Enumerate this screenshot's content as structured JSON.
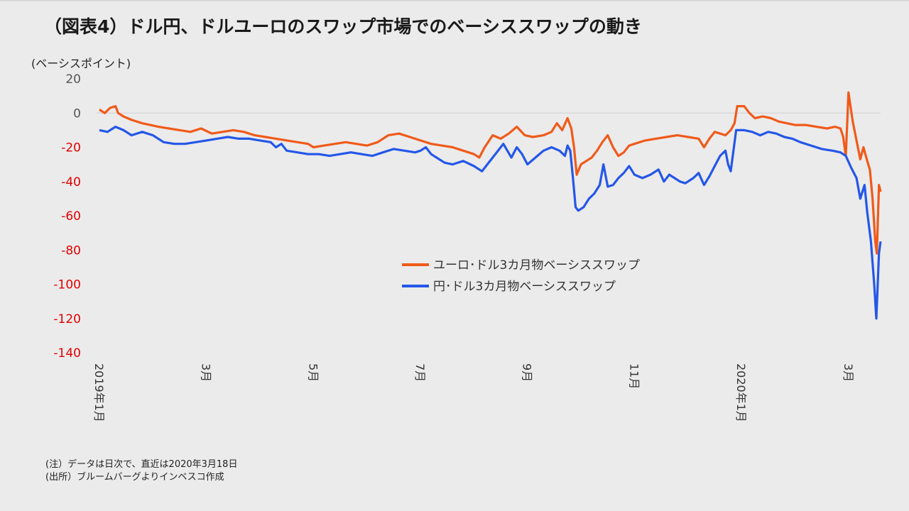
{
  "title": "（図表4）ドル円、ドルユーロのスワップ市場でのベーシススワップの動き",
  "notes": {
    "note": "(注）データは日次で、直近は2020年3月18日",
    "source": "(出所）ブルームバーグよりインベスコ作成"
  },
  "colors": {
    "euro": "#f05a1a",
    "yen": "#2457e8",
    "negative_tick": "#e00000",
    "positive_tick": "#555555"
  },
  "chart_data": {
    "type": "line",
    "ylabel": "(ベーシスポイント)",
    "ylim": [
      -140,
      20
    ],
    "yticks": [
      20,
      0,
      -20,
      -40,
      -60,
      -80,
      -100,
      -120,
      -140
    ],
    "xticks": [
      {
        "label": "2019年1月",
        "t": 0
      },
      {
        "label": "3月",
        "t": 2
      },
      {
        "label": "5月",
        "t": 4
      },
      {
        "label": "7月",
        "t": 6
      },
      {
        "label": "9月",
        "t": 8
      },
      {
        "label": "11月",
        "t": 10
      },
      {
        "label": "2020年1月",
        "t": 12
      },
      {
        "label": "3月",
        "t": 14
      }
    ],
    "x_range_months": [
      0,
      14.6
    ],
    "legend_position": "center-right",
    "series": [
      {
        "name": "ユーロ･ドル3カ月物ベーシススワップ",
        "points": [
          [
            0,
            2
          ],
          [
            0.1,
            0
          ],
          [
            0.2,
            3
          ],
          [
            0.3,
            4
          ],
          [
            0.35,
            0
          ],
          [
            0.45,
            -2
          ],
          [
            0.6,
            -4
          ],
          [
            0.8,
            -6
          ],
          [
            0.95,
            -7
          ],
          [
            1.1,
            -8
          ],
          [
            1.3,
            -9
          ],
          [
            1.5,
            -10
          ],
          [
            1.7,
            -11
          ],
          [
            1.9,
            -9
          ],
          [
            2.1,
            -12
          ],
          [
            2.3,
            -11
          ],
          [
            2.5,
            -10
          ],
          [
            2.7,
            -11
          ],
          [
            2.9,
            -13
          ],
          [
            3.1,
            -14
          ],
          [
            3.3,
            -15
          ],
          [
            3.5,
            -16
          ],
          [
            3.7,
            -17
          ],
          [
            3.9,
            -18
          ],
          [
            4.0,
            -20
          ],
          [
            4.2,
            -19
          ],
          [
            4.4,
            -18
          ],
          [
            4.6,
            -17
          ],
          [
            4.8,
            -18
          ],
          [
            5.0,
            -19
          ],
          [
            5.2,
            -17
          ],
          [
            5.4,
            -13
          ],
          [
            5.6,
            -12
          ],
          [
            5.8,
            -14
          ],
          [
            6.0,
            -16
          ],
          [
            6.2,
            -18
          ],
          [
            6.4,
            -19
          ],
          [
            6.6,
            -20
          ],
          [
            6.8,
            -22
          ],
          [
            7.0,
            -24
          ],
          [
            7.1,
            -26
          ],
          [
            7.2,
            -20
          ],
          [
            7.35,
            -13
          ],
          [
            7.5,
            -15
          ],
          [
            7.65,
            -12
          ],
          [
            7.8,
            -8
          ],
          [
            7.95,
            -13
          ],
          [
            8.1,
            -14
          ],
          [
            8.3,
            -13
          ],
          [
            8.45,
            -11
          ],
          [
            8.55,
            -6
          ],
          [
            8.65,
            -10
          ],
          [
            8.75,
            -3
          ],
          [
            8.82,
            -9
          ],
          [
            8.87,
            -20
          ],
          [
            8.92,
            -36
          ],
          [
            9.0,
            -30
          ],
          [
            9.1,
            -28
          ],
          [
            9.2,
            -26
          ],
          [
            9.3,
            -22
          ],
          [
            9.4,
            -17
          ],
          [
            9.5,
            -13
          ],
          [
            9.6,
            -20
          ],
          [
            9.7,
            -25
          ],
          [
            9.8,
            -23
          ],
          [
            9.9,
            -19
          ],
          [
            10.0,
            -18
          ],
          [
            10.2,
            -16
          ],
          [
            10.4,
            -15
          ],
          [
            10.6,
            -14
          ],
          [
            10.8,
            -13
          ],
          [
            11.0,
            -14
          ],
          [
            11.2,
            -15
          ],
          [
            11.3,
            -20
          ],
          [
            11.4,
            -15
          ],
          [
            11.5,
            -11
          ],
          [
            11.6,
            -12
          ],
          [
            11.7,
            -13
          ],
          [
            11.8,
            -10
          ],
          [
            11.87,
            -6
          ],
          [
            11.92,
            4
          ],
          [
            12.05,
            4
          ],
          [
            12.15,
            0
          ],
          [
            12.25,
            -3
          ],
          [
            12.4,
            -2
          ],
          [
            12.55,
            -3
          ],
          [
            12.7,
            -5
          ],
          [
            12.85,
            -6
          ],
          [
            13.0,
            -7
          ],
          [
            13.2,
            -7
          ],
          [
            13.4,
            -8
          ],
          [
            13.6,
            -9
          ],
          [
            13.75,
            -8
          ],
          [
            13.85,
            -9
          ],
          [
            13.9,
            -14
          ],
          [
            13.95,
            -25
          ],
          [
            14.0,
            12
          ],
          [
            14.08,
            -5
          ],
          [
            14.15,
            -16
          ],
          [
            14.22,
            -27
          ],
          [
            14.28,
            -20
          ],
          [
            14.35,
            -28
          ],
          [
            14.4,
            -33
          ],
          [
            14.45,
            -50
          ],
          [
            14.5,
            -75
          ],
          [
            14.53,
            -82
          ],
          [
            14.57,
            -42
          ],
          [
            14.6,
            -46
          ]
        ]
      },
      {
        "name": "円･ドル3カ月物ベーシススワップ",
        "points": [
          [
            0,
            -10
          ],
          [
            0.15,
            -11
          ],
          [
            0.3,
            -8
          ],
          [
            0.45,
            -10
          ],
          [
            0.6,
            -13
          ],
          [
            0.8,
            -11
          ],
          [
            1.0,
            -13
          ],
          [
            1.2,
            -17
          ],
          [
            1.4,
            -18
          ],
          [
            1.6,
            -18
          ],
          [
            1.8,
            -17
          ],
          [
            2.0,
            -16
          ],
          [
            2.2,
            -15
          ],
          [
            2.4,
            -14
          ],
          [
            2.6,
            -15
          ],
          [
            2.8,
            -15
          ],
          [
            3.0,
            -16
          ],
          [
            3.2,
            -17
          ],
          [
            3.3,
            -20
          ],
          [
            3.4,
            -18
          ],
          [
            3.5,
            -22
          ],
          [
            3.7,
            -23
          ],
          [
            3.9,
            -24
          ],
          [
            4.1,
            -24
          ],
          [
            4.3,
            -25
          ],
          [
            4.5,
            -24
          ],
          [
            4.7,
            -23
          ],
          [
            4.9,
            -24
          ],
          [
            5.1,
            -25
          ],
          [
            5.3,
            -23
          ],
          [
            5.5,
            -21
          ],
          [
            5.7,
            -22
          ],
          [
            5.9,
            -23
          ],
          [
            6.0,
            -22
          ],
          [
            6.1,
            -20
          ],
          [
            6.2,
            -24
          ],
          [
            6.3,
            -26
          ],
          [
            6.45,
            -29
          ],
          [
            6.6,
            -30
          ],
          [
            6.8,
            -28
          ],
          [
            7.0,
            -31
          ],
          [
            7.15,
            -34
          ],
          [
            7.25,
            -30
          ],
          [
            7.4,
            -24
          ],
          [
            7.55,
            -18
          ],
          [
            7.7,
            -26
          ],
          [
            7.8,
            -20
          ],
          [
            7.9,
            -24
          ],
          [
            8.0,
            -30
          ],
          [
            8.15,
            -26
          ],
          [
            8.3,
            -22
          ],
          [
            8.45,
            -20
          ],
          [
            8.6,
            -22
          ],
          [
            8.7,
            -25
          ],
          [
            8.75,
            -19
          ],
          [
            8.8,
            -22
          ],
          [
            8.85,
            -38
          ],
          [
            8.9,
            -55
          ],
          [
            8.95,
            -57
          ],
          [
            9.05,
            -55
          ],
          [
            9.15,
            -50
          ],
          [
            9.25,
            -47
          ],
          [
            9.35,
            -42
          ],
          [
            9.42,
            -30
          ],
          [
            9.5,
            -43
          ],
          [
            9.6,
            -42
          ],
          [
            9.7,
            -38
          ],
          [
            9.8,
            -35
          ],
          [
            9.9,
            -31
          ],
          [
            10.0,
            -36
          ],
          [
            10.15,
            -38
          ],
          [
            10.3,
            -36
          ],
          [
            10.45,
            -33
          ],
          [
            10.55,
            -40
          ],
          [
            10.65,
            -36
          ],
          [
            10.75,
            -38
          ],
          [
            10.85,
            -40
          ],
          [
            10.95,
            -41
          ],
          [
            11.1,
            -38
          ],
          [
            11.2,
            -35
          ],
          [
            11.3,
            -42
          ],
          [
            11.4,
            -37
          ],
          [
            11.5,
            -31
          ],
          [
            11.6,
            -25
          ],
          [
            11.7,
            -22
          ],
          [
            11.75,
            -30
          ],
          [
            11.8,
            -34
          ],
          [
            11.85,
            -22
          ],
          [
            11.9,
            -10
          ],
          [
            12.05,
            -10
          ],
          [
            12.2,
            -11
          ],
          [
            12.35,
            -13
          ],
          [
            12.5,
            -11
          ],
          [
            12.65,
            -12
          ],
          [
            12.8,
            -14
          ],
          [
            12.95,
            -15
          ],
          [
            13.1,
            -17
          ],
          [
            13.3,
            -19
          ],
          [
            13.5,
            -21
          ],
          [
            13.7,
            -22
          ],
          [
            13.85,
            -23
          ],
          [
            13.95,
            -25
          ],
          [
            14.05,
            -32
          ],
          [
            14.15,
            -38
          ],
          [
            14.22,
            -50
          ],
          [
            14.3,
            -42
          ],
          [
            14.35,
            -58
          ],
          [
            14.42,
            -75
          ],
          [
            14.48,
            -100
          ],
          [
            14.52,
            -120
          ],
          [
            14.57,
            -82
          ],
          [
            14.6,
            -75
          ]
        ]
      }
    ]
  }
}
